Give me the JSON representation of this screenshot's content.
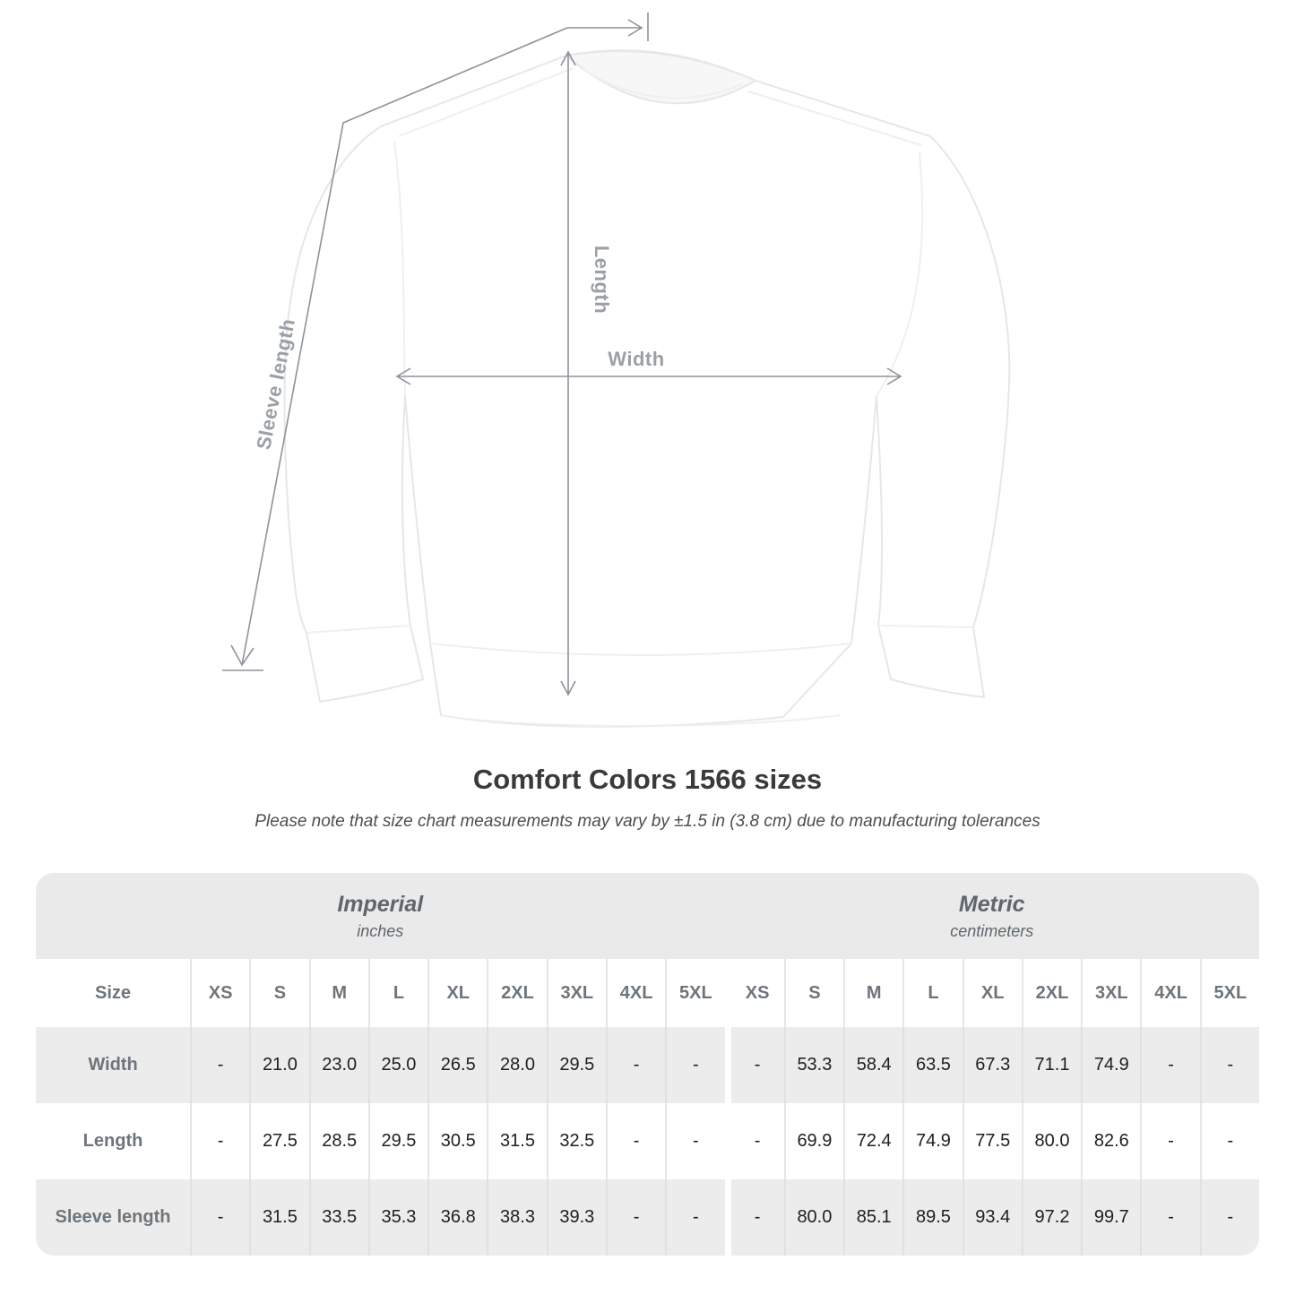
{
  "figure": {
    "labels": {
      "sleeve_length": "Sleeve length",
      "length": "Length",
      "width": "Width"
    }
  },
  "title": "Comfort Colors 1566 sizes",
  "subtitle": "Please note that size chart measurements may vary by ±1.5 in (3.8 cm) due to manufacturing tolerances",
  "table": {
    "groups": [
      {
        "label": "Imperial",
        "sublabel": "inches"
      },
      {
        "label": "Metric",
        "sublabel": "centimeters"
      }
    ],
    "size_header": "Size",
    "imperial_sizes": [
      "XS",
      "S",
      "M",
      "L",
      "XL",
      "2XL",
      "3XL",
      "4XL",
      "5XL"
    ],
    "metric_sizes": [
      "XS",
      "S",
      "M",
      "L",
      "XL",
      "2XL",
      "3XL",
      "4XL",
      "5XL"
    ],
    "rows": [
      {
        "label": "Width",
        "imperial": [
          "-",
          "21.0",
          "23.0",
          "25.0",
          "26.5",
          "28.0",
          "29.5",
          "-",
          "-"
        ],
        "metric": [
          "-",
          "53.3",
          "58.4",
          "63.5",
          "67.3",
          "71.1",
          "74.9",
          "-",
          "-"
        ]
      },
      {
        "label": "Length",
        "imperial": [
          "-",
          "27.5",
          "28.5",
          "29.5",
          "30.5",
          "31.5",
          "32.5",
          "-",
          "-"
        ],
        "metric": [
          "-",
          "69.9",
          "72.4",
          "74.9",
          "77.5",
          "80.0",
          "82.6",
          "-",
          "-"
        ]
      },
      {
        "label": "Sleeve length",
        "imperial": [
          "-",
          "31.5",
          "33.5",
          "35.3",
          "36.8",
          "38.3",
          "39.3",
          "-",
          "-"
        ],
        "metric": [
          "-",
          "80.0",
          "85.1",
          "89.5",
          "93.4",
          "97.2",
          "99.7",
          "-",
          "-"
        ]
      }
    ]
  },
  "chart_data": {
    "type": "table",
    "title": "Comfort Colors 1566 sizes",
    "note": "Please note that size chart measurements may vary by ±1.5 in (3.8 cm) due to manufacturing tolerances",
    "unit_groups": [
      {
        "name": "Imperial",
        "unit": "inches",
        "sizes": [
          "XS",
          "S",
          "M",
          "L",
          "XL",
          "2XL",
          "3XL",
          "4XL",
          "5XL"
        ]
      },
      {
        "name": "Metric",
        "unit": "centimeters",
        "sizes": [
          "XS",
          "S",
          "M",
          "L",
          "XL",
          "2XL",
          "3XL",
          "4XL",
          "5XL"
        ]
      }
    ],
    "measurements": [
      {
        "name": "Width",
        "imperial": [
          null,
          21.0,
          23.0,
          25.0,
          26.5,
          28.0,
          29.5,
          null,
          null
        ],
        "metric": [
          null,
          53.3,
          58.4,
          63.5,
          67.3,
          71.1,
          74.9,
          null,
          null
        ]
      },
      {
        "name": "Length",
        "imperial": [
          null,
          27.5,
          28.5,
          29.5,
          30.5,
          31.5,
          32.5,
          null,
          null
        ],
        "metric": [
          null,
          69.9,
          72.4,
          74.9,
          77.5,
          80.0,
          82.6,
          null,
          null
        ]
      },
      {
        "name": "Sleeve length",
        "imperial": [
          null,
          31.5,
          33.5,
          35.3,
          36.8,
          38.3,
          39.3,
          null,
          null
        ],
        "metric": [
          null,
          80.0,
          85.1,
          89.5,
          93.4,
          97.2,
          99.7,
          null,
          null
        ]
      }
    ]
  },
  "colors": {
    "dimension_line": "#8d9399",
    "dimension_label": "#9aa0a5",
    "title_text": "#3a3a3a",
    "table_header_text": "#6e757b",
    "table_value_text": "#1f1f1f",
    "group_band": "#eaeaea",
    "striped_row": "#ececec"
  }
}
